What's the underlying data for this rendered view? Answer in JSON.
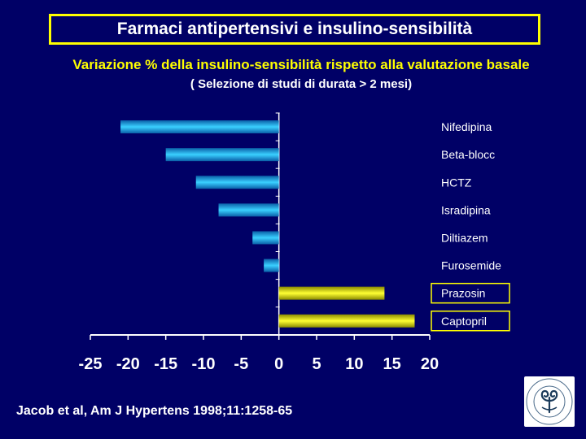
{
  "title": "Farmaci  antipertensivi e  insulino-sensibilità",
  "subtitle": "Variazione % della insulino-sensibilità rispetto alla valutazione basale",
  "subtitle2": "( Selezione di studi di durata > 2 mesi)",
  "citation": "Jacob et al, Am J Hypertens 1998;11:1258-65",
  "logo_text": "UNIVERSITAS STUDIORUM INSUBRIAE",
  "colors": {
    "background": "#000066",
    "negative_bar": "#1fb8e8",
    "positive_bar": "#ffff00",
    "text": "#ffffff",
    "accent": "#ffff00"
  },
  "chart_data": {
    "type": "bar",
    "orientation": "horizontal",
    "categories": [
      "Nifedipina",
      "Beta-blocc",
      "HCTZ",
      "Isradipina",
      "Diltiazem",
      "Furosemide",
      "Prazosin",
      "Captopril"
    ],
    "values": [
      -21,
      -15,
      -11,
      -8,
      -3.5,
      -2,
      14,
      18
    ],
    "highlighted": [
      "Prazosin",
      "Captopril"
    ],
    "xlim": [
      -25,
      20
    ],
    "xticks": [
      "-25",
      "-20",
      "-15",
      "-10",
      "-5",
      "0",
      "5",
      "10",
      "15",
      "20"
    ],
    "grid": false
  }
}
